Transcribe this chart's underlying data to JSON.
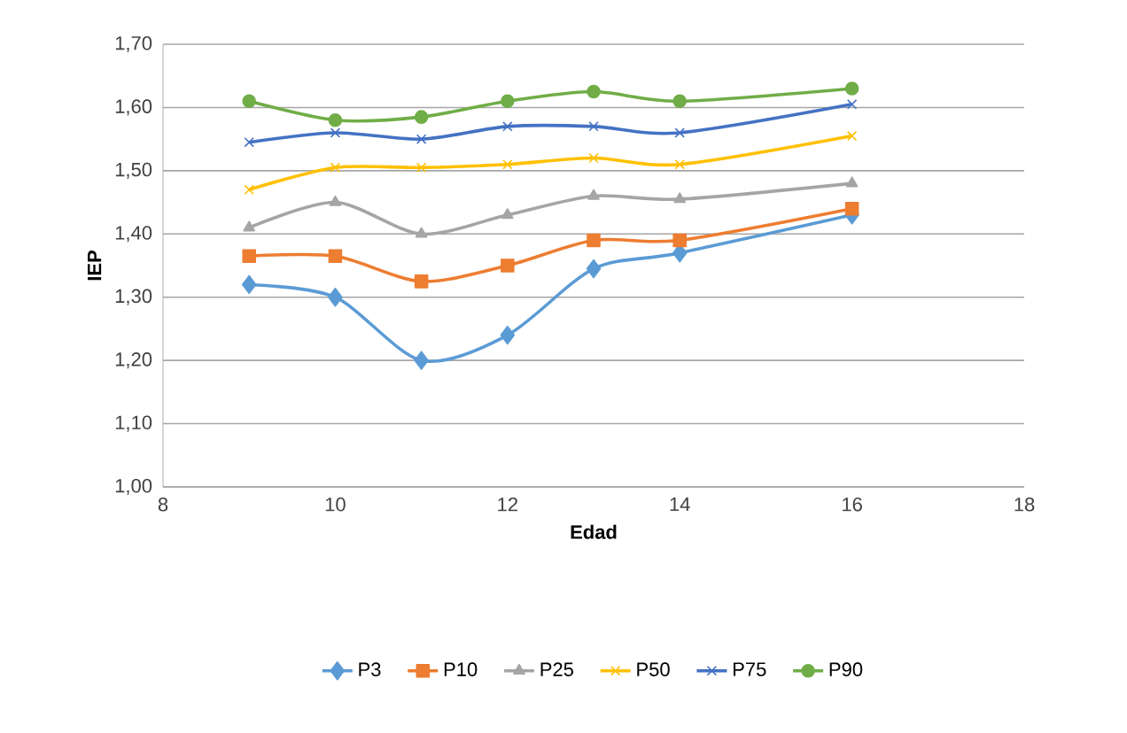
{
  "chart_data": {
    "type": "line",
    "xlabel": "Edad",
    "ylabel": "IEP",
    "x": [
      9,
      10,
      11,
      12,
      13,
      14,
      16
    ],
    "xlim": [
      8,
      18
    ],
    "xticks": [
      8,
      10,
      12,
      14,
      16,
      18
    ],
    "ylim": [
      1.0,
      1.7
    ],
    "yticks": [
      {
        "value": 1.0,
        "label": "1,00"
      },
      {
        "value": 1.1,
        "label": "1,10"
      },
      {
        "value": 1.2,
        "label": "1,20"
      },
      {
        "value": 1.3,
        "label": "1,30"
      },
      {
        "value": 1.4,
        "label": "1,40"
      },
      {
        "value": 1.5,
        "label": "1,50"
      },
      {
        "value": 1.6,
        "label": "1,60"
      },
      {
        "value": 1.7,
        "label": "1,70"
      }
    ],
    "grid": "y",
    "legend": "bottom",
    "line_style": "solid",
    "series": [
      {
        "name": "P3",
        "color": "#5b9bd5",
        "marker": "diamond",
        "values": [
          1.32,
          1.3,
          1.2,
          1.24,
          1.345,
          1.37,
          1.43
        ]
      },
      {
        "name": "P10",
        "color": "#ed7d31",
        "marker": "square",
        "values": [
          1.365,
          1.365,
          1.325,
          1.35,
          1.39,
          1.39,
          1.44
        ]
      },
      {
        "name": "P25",
        "color": "#a5a5a5",
        "marker": "triangle",
        "values": [
          1.41,
          1.45,
          1.4,
          1.43,
          1.46,
          1.455,
          1.48
        ]
      },
      {
        "name": "P50",
        "color": "#ffc000",
        "marker": "cross",
        "values": [
          1.47,
          1.505,
          1.505,
          1.51,
          1.52,
          1.51,
          1.555
        ]
      },
      {
        "name": "P75",
        "color": "#4472c4",
        "marker": "cross",
        "values": [
          1.545,
          1.56,
          1.55,
          1.57,
          1.57,
          1.56,
          1.605
        ]
      },
      {
        "name": "P90",
        "color": "#70ad47",
        "marker": "circle",
        "values": [
          1.61,
          1.58,
          1.585,
          1.61,
          1.625,
          1.61,
          1.63
        ]
      }
    ]
  }
}
